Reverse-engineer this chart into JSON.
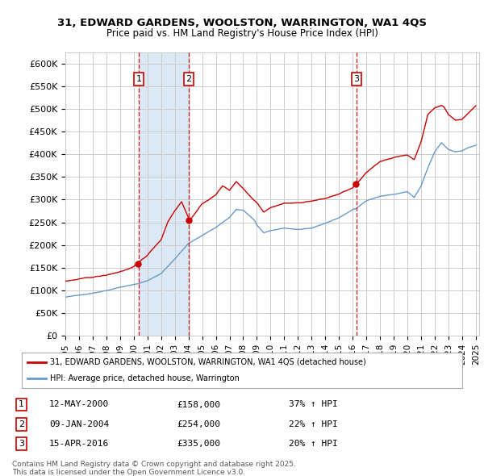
{
  "title_line1": "31, EDWARD GARDENS, WOOLSTON, WARRINGTON, WA1 4QS",
  "title_line2": "Price paid vs. HM Land Registry's House Price Index (HPI)",
  "ylim": [
    0,
    625000
  ],
  "yticks": [
    0,
    50000,
    100000,
    150000,
    200000,
    250000,
    300000,
    350000,
    400000,
    450000,
    500000,
    550000,
    600000
  ],
  "ytick_labels": [
    "£0",
    "£50K",
    "£100K",
    "£150K",
    "£200K",
    "£250K",
    "£300K",
    "£350K",
    "£400K",
    "£450K",
    "£500K",
    "£550K",
    "£600K"
  ],
  "property_color": "#cc0000",
  "hpi_color": "#6699cc",
  "vline_color": "#cc0000",
  "shade_color": "#dde8f5",
  "grid_color": "#cccccc",
  "background_color": "#ffffff",
  "legend_property": "31, EDWARD GARDENS, WOOLSTON, WARRINGTON, WA1 4QS (detached house)",
  "legend_hpi": "HPI: Average price, detached house, Warrington",
  "sale_dates": [
    "2000-05-12",
    "2004-01-09",
    "2016-04-15"
  ],
  "sale_prices": [
    158000,
    254000,
    335000
  ],
  "sale_labels": [
    "1",
    "2",
    "3"
  ],
  "sale_info": [
    {
      "label": "1",
      "date": "12-MAY-2000",
      "price": "£158,000",
      "change": "37% ↑ HPI"
    },
    {
      "label": "2",
      "date": "09-JAN-2004",
      "price": "£254,000",
      "change": "22% ↑ HPI"
    },
    {
      "label": "3",
      "date": "15-APR-2016",
      "price": "£335,000",
      "change": "20% ↑ HPI"
    }
  ],
  "footer": "Contains HM Land Registry data © Crown copyright and database right 2025.\nThis data is licensed under the Open Government Licence v3.0.",
  "xtick_years": [
    "1995",
    "1996",
    "1997",
    "1998",
    "1999",
    "2000",
    "2001",
    "2002",
    "2003",
    "2004",
    "2005",
    "2006",
    "2007",
    "2008",
    "2009",
    "2010",
    "2011",
    "2012",
    "2013",
    "2014",
    "2015",
    "2016",
    "2017",
    "2018",
    "2019",
    "2020",
    "2021",
    "2022",
    "2023",
    "2024",
    "2025"
  ]
}
